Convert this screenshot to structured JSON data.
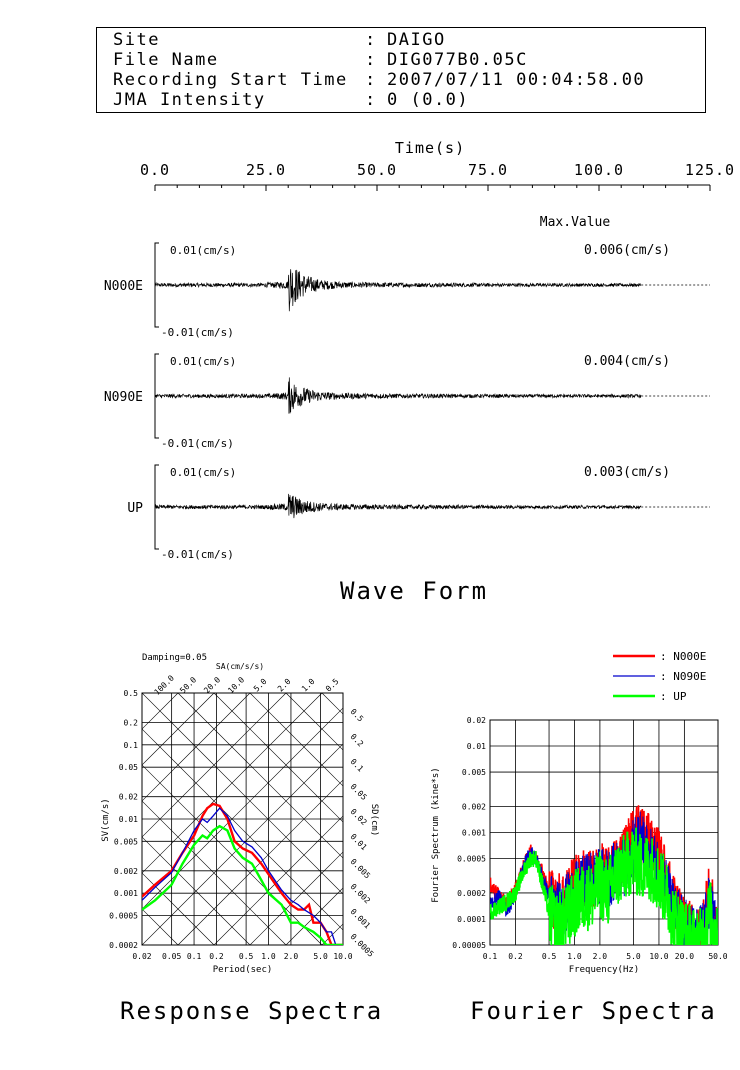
{
  "header": {
    "rows": [
      {
        "label": "Site",
        "value": "DAIGO"
      },
      {
        "label": "File Name",
        "value": "DIG077B0.05C"
      },
      {
        "label": "Recording Start Time",
        "value": "2007/07/11 00:04:58.00"
      },
      {
        "label": "JMA Intensity",
        "value": "0 (0.0)"
      }
    ]
  },
  "chart_data": [
    {
      "type": "line",
      "title": "Wave Form",
      "xlabel": "Time(s)",
      "xlim": [
        0,
        125
      ],
      "xticks": [
        "0.0",
        "25.0",
        "50.0",
        "75.0",
        "100.0",
        "125.0"
      ],
      "max_value_label": "Max.Value",
      "series": [
        {
          "name": "N000E",
          "max_value": "0.006(cm/s)",
          "upper_label": "0.01(cm/s)",
          "lower_label": "-0.01(cm/s)",
          "record_end": 109.5,
          "event_time": 30.0,
          "max": 0.006
        },
        {
          "name": "N090E",
          "max_value": "0.004(cm/s)",
          "upper_label": "0.01(cm/s)",
          "lower_label": "-0.01(cm/s)",
          "record_end": 109.5,
          "event_time": 30.0,
          "max": 0.004
        },
        {
          "name": "UP",
          "max_value": "0.003(cm/s)",
          "upper_label": "0.01(cm/s)",
          "lower_label": "-0.01(cm/s)",
          "record_end": 109.5,
          "event_time": 30.0,
          "max": 0.003
        }
      ]
    },
    {
      "type": "line",
      "title": "Response Spectra",
      "damping": "Damping=0.05",
      "xlabel": "Period(sec)",
      "ylabel": "SV(cm/s)",
      "sa_label": "SA(cm/s/s)",
      "sd_label": "SD(cm)",
      "xscale": "log",
      "yscale": "log",
      "xlim": [
        0.02,
        10.0
      ],
      "ylim": [
        0.0002,
        0.5
      ],
      "xticks": [
        "0.02",
        "0.05",
        "0.1",
        "0.2",
        "0.5",
        "1.0",
        "2.0",
        "5.0",
        "10.0"
      ],
      "yticks": [
        "0.5",
        "0.2",
        "0.1",
        "0.05",
        "0.02",
        "0.01",
        "0.005",
        "0.002",
        "0.001",
        "0.0005",
        "0.0002"
      ],
      "sa_ticks": [
        "100.0",
        "50.0",
        "20.0",
        "10.0",
        "5.0",
        "2.0",
        "1.0",
        "0.5"
      ],
      "sd_ticks": [
        "0.5",
        "0.2",
        "0.1",
        "0.05",
        "0.02",
        "0.01",
        "0.005",
        "0.002",
        "0.001",
        "0.0005"
      ],
      "series": [
        {
          "name": "N000E",
          "color": "#ff0000",
          "x": [
            0.02,
            0.03,
            0.05,
            0.07,
            0.1,
            0.13,
            0.15,
            0.18,
            0.22,
            0.28,
            0.35,
            0.45,
            0.6,
            0.8,
            1.0,
            1.5,
            2.0,
            2.5,
            3.0,
            3.5,
            4.0,
            5.0,
            6.0,
            7.0,
            8.0,
            10.0
          ],
          "y": [
            0.0009,
            0.0013,
            0.002,
            0.0035,
            0.006,
            0.011,
            0.014,
            0.016,
            0.015,
            0.01,
            0.005,
            0.004,
            0.0035,
            0.0025,
            0.0018,
            0.001,
            0.0007,
            0.0006,
            0.0006,
            0.0007,
            0.0004,
            0.0004,
            0.0003,
            0.0002,
            0.0002,
            0.0002
          ]
        },
        {
          "name": "N090E",
          "color": "#0000cc",
          "x": [
            0.02,
            0.03,
            0.05,
            0.07,
            0.1,
            0.13,
            0.15,
            0.18,
            0.22,
            0.28,
            0.35,
            0.45,
            0.6,
            0.8,
            1.0,
            1.5,
            2.0,
            2.5,
            3.0,
            4.0,
            5.0,
            6.0,
            7.0,
            8.0,
            10.0
          ],
          "y": [
            0.0008,
            0.0012,
            0.0019,
            0.0035,
            0.007,
            0.01,
            0.009,
            0.011,
            0.014,
            0.011,
            0.007,
            0.005,
            0.0042,
            0.003,
            0.002,
            0.0011,
            0.0008,
            0.0007,
            0.0006,
            0.0005,
            0.0004,
            0.0003,
            0.0003,
            0.0002,
            0.0002
          ]
        },
        {
          "name": "UP",
          "color": "#00ff00",
          "x": [
            0.02,
            0.03,
            0.05,
            0.07,
            0.1,
            0.13,
            0.15,
            0.18,
            0.22,
            0.28,
            0.35,
            0.45,
            0.6,
            0.8,
            1.0,
            1.5,
            2.0,
            2.5,
            3.0,
            4.0,
            5.0,
            6.0,
            7.0,
            8.0,
            10.0
          ],
          "y": [
            0.0006,
            0.0008,
            0.0013,
            0.0025,
            0.0045,
            0.006,
            0.0055,
            0.007,
            0.008,
            0.007,
            0.004,
            0.003,
            0.0025,
            0.0015,
            0.001,
            0.0007,
            0.0004,
            0.0004,
            0.00035,
            0.0003,
            0.00025,
            0.0002,
            0.0002,
            0.0002,
            0.0002
          ]
        }
      ]
    },
    {
      "type": "line",
      "title": "Fourier Spectra",
      "xlabel": "Frequency(Hz)",
      "ylabel": "Fourier Spectrum (kine*s)",
      "xscale": "log",
      "yscale": "log",
      "xlim": [
        0.1,
        50.0
      ],
      "ylim": [
        5e-05,
        0.02
      ],
      "xticks": [
        "0.1",
        "0.2",
        "0.5",
        "1.0",
        "2.0",
        "5.0",
        "10.0",
        "20.0",
        "50.0"
      ],
      "yticks": [
        "0.02",
        "0.01",
        "0.005",
        "0.002",
        "0.001",
        "0.0005",
        "0.0002",
        "0.0001",
        "0.00005"
      ],
      "legend": {
        "position": "top-right"
      },
      "series": [
        {
          "name": "N000E",
          "color": "#ff0000",
          "x": [
            0.1,
            0.13,
            0.16,
            0.2,
            0.25,
            0.3,
            0.35,
            0.4,
            0.5,
            0.6,
            0.8,
            1.0,
            1.3,
            1.6,
            2.0,
            2.5,
            3.0,
            4.0,
            5.0,
            6.0,
            7.0,
            8.0,
            10.0,
            12.0,
            15.0,
            20.0,
            30.0,
            40.0,
            50.0
          ],
          "y": [
            0.00025,
            0.00018,
            0.00015,
            0.00022,
            0.0004,
            0.0006,
            0.0005,
            0.0004,
            0.0002,
            0.00015,
            0.00018,
            0.00025,
            0.0003,
            0.00028,
            0.00035,
            0.0003,
            0.0004,
            0.0006,
            0.0009,
            0.0011,
            0.0008,
            0.0007,
            0.0005,
            0.0003,
            0.00015,
            8e-05,
            6e-05,
            0.0002,
            5e-05
          ],
          "jitter": 0.35
        },
        {
          "name": "N090E",
          "color": "#0000cc",
          "x": [
            0.1,
            0.13,
            0.16,
            0.2,
            0.25,
            0.3,
            0.35,
            0.4,
            0.5,
            0.6,
            0.8,
            1.0,
            1.3,
            1.6,
            2.0,
            2.5,
            3.0,
            4.0,
            5.0,
            6.0,
            7.0,
            8.0,
            10.0,
            12.0,
            15.0,
            20.0,
            30.0,
            40.0,
            50.0
          ],
          "y": [
            0.00015,
            0.00018,
            0.00012,
            0.0002,
            0.0004,
            0.0006,
            0.0005,
            0.00035,
            0.00018,
            0.00012,
            0.00015,
            0.0002,
            0.00025,
            0.00028,
            0.0003,
            0.0003,
            0.00035,
            0.0004,
            0.0007,
            0.0008,
            0.0006,
            0.0005,
            0.0004,
            0.00025,
            0.00012,
            8e-05,
            6e-05,
            0.00015,
            5e-05
          ],
          "jitter": 0.35
        },
        {
          "name": "UP",
          "color": "#00ff00",
          "x": [
            0.1,
            0.13,
            0.16,
            0.2,
            0.25,
            0.3,
            0.35,
            0.4,
            0.5,
            0.6,
            0.8,
            1.0,
            1.3,
            1.6,
            2.0,
            2.5,
            3.0,
            4.0,
            5.0,
            6.0,
            7.0,
            8.0,
            10.0,
            12.0,
            15.0,
            20.0,
            30.0,
            40.0,
            50.0
          ],
          "y": [
            0.00012,
            0.00014,
            0.00016,
            0.0002,
            0.00035,
            0.0005,
            0.0005,
            0.0003,
            0.00012,
            8e-05,
            0.0001,
            0.00015,
            0.00018,
            0.00018,
            0.00025,
            0.0002,
            0.0003,
            0.0004,
            0.0005,
            0.0004,
            0.0004,
            0.0004,
            0.0003,
            0.0002,
            0.0001,
            7e-05,
            5e-05,
            0.00012,
            5e-05
          ],
          "jitter": 0.4
        }
      ]
    }
  ]
}
